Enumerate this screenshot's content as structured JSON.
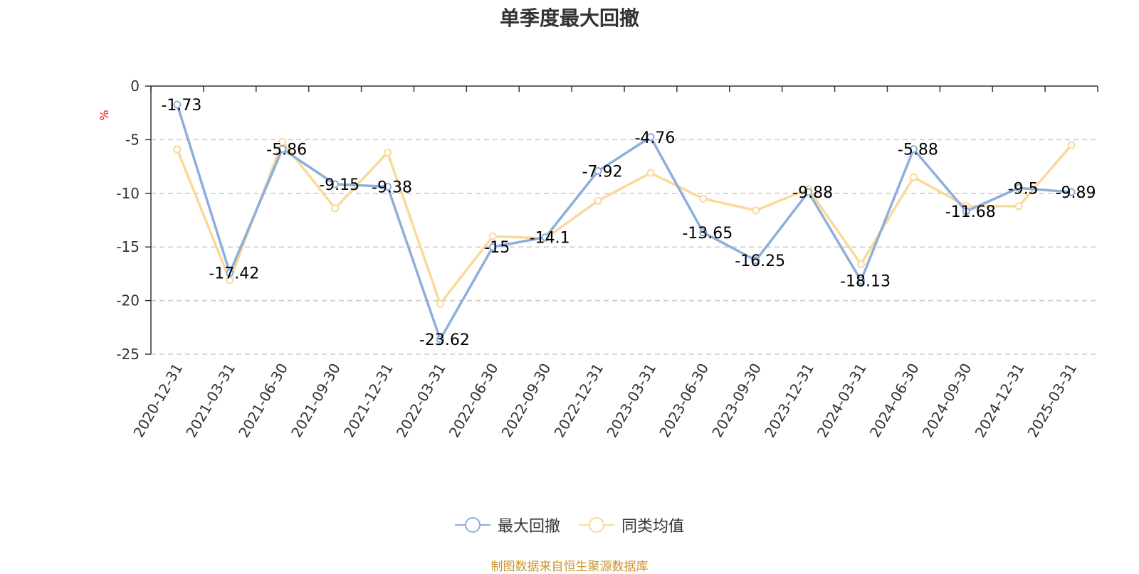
{
  "chart_data": {
    "type": "line",
    "title": "单季度最大回撤",
    "ylabel": "%",
    "ylim": [
      -25,
      0
    ],
    "yticks": [
      0,
      -5,
      -10,
      -15,
      -20,
      -25
    ],
    "grid": true,
    "legend_position": "bottom-center",
    "categories": [
      "2020-12-31",
      "2021-03-31",
      "2021-06-30",
      "2021-09-30",
      "2021-12-31",
      "2022-03-31",
      "2022-06-30",
      "2022-09-30",
      "2022-12-31",
      "2023-03-31",
      "2023-06-30",
      "2023-09-30",
      "2023-12-31",
      "2024-03-31",
      "2024-06-30",
      "2024-09-30",
      "2024-12-31",
      "2025-03-31"
    ],
    "series": [
      {
        "name": "最大回撤",
        "color": "#8eaedb",
        "show_labels": true,
        "values": [
          -1.73,
          -17.42,
          -5.86,
          -9.15,
          -9.38,
          -23.62,
          -15,
          -14.1,
          -7.92,
          -4.76,
          -13.65,
          -16.25,
          -9.88,
          -18.13,
          -5.88,
          -11.68,
          -9.5,
          -9.89
        ]
      },
      {
        "name": "同类均值",
        "color": "#fad999",
        "show_labels": false,
        "values": [
          -5.9,
          -18.1,
          -5.2,
          -11.4,
          -6.2,
          -20.3,
          -14.0,
          -14.2,
          -10.7,
          -8.1,
          -10.5,
          -11.6,
          -9.6,
          -16.6,
          -8.5,
          -11.2,
          -11.2,
          -5.5
        ]
      }
    ]
  },
  "source_text": "制图数据来自恒生聚源数据库"
}
